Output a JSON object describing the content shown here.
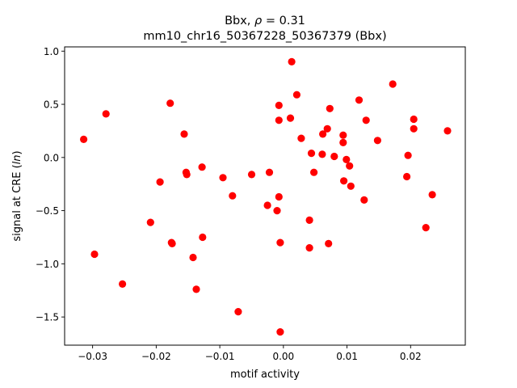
{
  "chart_data": {
    "type": "scatter",
    "title_line1": "Bbx, ρ = 0.31",
    "title_line2": "mm10_chr16_50367228_50367379 (Bbx)",
    "xlabel": "motif activity",
    "ylabel": "signal at CRE (ln)",
    "xlim": [
      -0.0344,
      0.0286
    ],
    "ylim": [
      -1.765,
      1.04
    ],
    "xticks": [
      -0.03,
      -0.02,
      -0.01,
      0.0,
      0.01,
      0.02
    ],
    "xtick_labels": [
      "−0.03",
      "−0.02",
      "−0.01",
      "0.00",
      "0.01",
      "0.02"
    ],
    "yticks": [
      -1.5,
      -1.0,
      -0.5,
      0.0,
      0.5,
      1.0
    ],
    "ytick_labels": [
      "−1.5",
      "−1.0",
      "−0.5",
      "0.0",
      "0.5",
      "1.0"
    ],
    "marker_color": "#ff0000",
    "grid": false,
    "points": [
      {
        "x": -0.0314,
        "y": 0.17
      },
      {
        "x": -0.0297,
        "y": -0.91
      },
      {
        "x": -0.0279,
        "y": 0.41
      },
      {
        "x": -0.0253,
        "y": -1.19
      },
      {
        "x": -0.0209,
        "y": -0.61
      },
      {
        "x": -0.0194,
        "y": -0.23
      },
      {
        "x": -0.0178,
        "y": 0.51
      },
      {
        "x": -0.0176,
        "y": -0.8
      },
      {
        "x": -0.0175,
        "y": -0.81
      },
      {
        "x": -0.0156,
        "y": 0.22
      },
      {
        "x": -0.0153,
        "y": -0.14
      },
      {
        "x": -0.0152,
        "y": -0.16
      },
      {
        "x": -0.0142,
        "y": -0.94
      },
      {
        "x": -0.0137,
        "y": -1.24
      },
      {
        "x": -0.0128,
        "y": -0.09
      },
      {
        "x": -0.0127,
        "y": -0.75
      },
      {
        "x": -0.0095,
        "y": -0.19
      },
      {
        "x": -0.008,
        "y": -0.36
      },
      {
        "x": -0.0071,
        "y": -1.45
      },
      {
        "x": -0.005,
        "y": -0.16
      },
      {
        "x": -0.0025,
        "y": -0.45
      },
      {
        "x": -0.0022,
        "y": -0.14
      },
      {
        "x": -0.001,
        "y": -0.5
      },
      {
        "x": -0.0007,
        "y": 0.49
      },
      {
        "x": -0.0007,
        "y": 0.35
      },
      {
        "x": -0.0007,
        "y": -0.37
      },
      {
        "x": -0.0005,
        "y": -0.8
      },
      {
        "x": -0.0005,
        "y": -1.64
      },
      {
        "x": 0.0011,
        "y": 0.37
      },
      {
        "x": 0.0013,
        "y": 0.9
      },
      {
        "x": 0.0021,
        "y": 0.59
      },
      {
        "x": 0.0028,
        "y": 0.18
      },
      {
        "x": 0.0041,
        "y": -0.59
      },
      {
        "x": 0.0041,
        "y": -0.85
      },
      {
        "x": 0.0044,
        "y": 0.04
      },
      {
        "x": 0.0048,
        "y": -0.14
      },
      {
        "x": 0.0061,
        "y": 0.03
      },
      {
        "x": 0.0062,
        "y": 0.22
      },
      {
        "x": 0.0069,
        "y": 0.27
      },
      {
        "x": 0.0071,
        "y": -0.81
      },
      {
        "x": 0.0073,
        "y": 0.46
      },
      {
        "x": 0.008,
        "y": 0.01
      },
      {
        "x": 0.0094,
        "y": 0.21
      },
      {
        "x": 0.0094,
        "y": 0.14
      },
      {
        "x": 0.0095,
        "y": -0.22
      },
      {
        "x": 0.0099,
        "y": -0.02
      },
      {
        "x": 0.0104,
        "y": -0.08
      },
      {
        "x": 0.0106,
        "y": -0.27
      },
      {
        "x": 0.0119,
        "y": 0.54
      },
      {
        "x": 0.0127,
        "y": -0.4
      },
      {
        "x": 0.013,
        "y": 0.35
      },
      {
        "x": 0.0148,
        "y": 0.16
      },
      {
        "x": 0.0172,
        "y": 0.69
      },
      {
        "x": 0.0194,
        "y": -0.18
      },
      {
        "x": 0.0196,
        "y": 0.02
      },
      {
        "x": 0.0205,
        "y": 0.36
      },
      {
        "x": 0.0205,
        "y": 0.27
      },
      {
        "x": 0.0224,
        "y": -0.66
      },
      {
        "x": 0.0234,
        "y": -0.35
      },
      {
        "x": 0.0258,
        "y": 0.25
      }
    ]
  }
}
